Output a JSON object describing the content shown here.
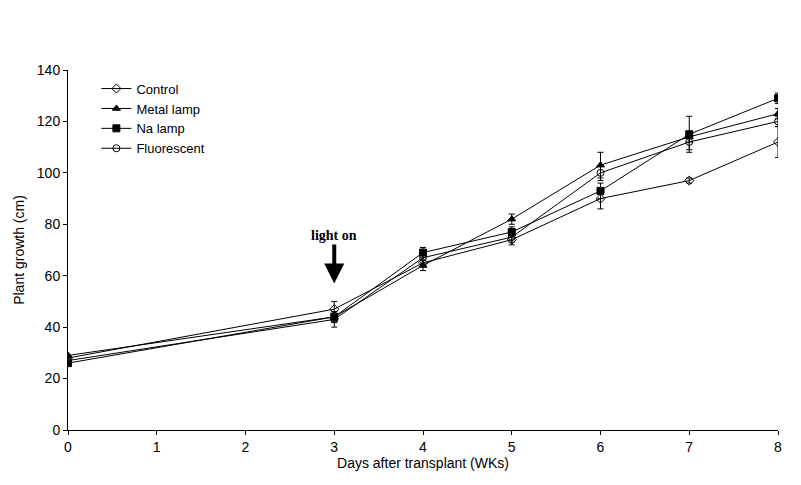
{
  "chart_data": {
    "type": "line",
    "xlabel": "Days after transplant (WKs)",
    "ylabel": "Plant growth (cm)",
    "x": [
      0,
      3,
      4,
      5,
      6,
      7,
      8
    ],
    "series": [
      {
        "name": "Control",
        "color": "#000000",
        "marker": "diamond-open",
        "line_style": "solid",
        "values": [
          28,
          47,
          65,
          74,
          90,
          97,
          112
        ],
        "error": [
          0,
          3,
          1,
          2,
          4,
          1,
          6
        ]
      },
      {
        "name": "Metal lamp",
        "color": "#000000",
        "marker": "triangle-up",
        "line_style": "solid",
        "values": [
          29,
          44,
          64,
          82,
          103,
          114,
          123
        ],
        "error": [
          0,
          2,
          2,
          2,
          5,
          2,
          2
        ]
      },
      {
        "name": "Na lamp",
        "color": "#000000",
        "marker": "square",
        "line_style": "solid",
        "values": [
          26,
          44,
          69,
          77,
          93,
          115,
          129
        ],
        "error": [
          0,
          2,
          2,
          2,
          3,
          7,
          2
        ]
      },
      {
        "name": "Fluorescent",
        "color": "#000000",
        "marker": "circle-open",
        "line_style": "solid",
        "values": [
          27,
          43,
          67,
          75,
          100,
          112,
          120
        ],
        "error": [
          0,
          3,
          2,
          2,
          3,
          3,
          2
        ]
      }
    ],
    "xlim": [
      0,
      8
    ],
    "xticks": [
      0,
      1,
      2,
      3,
      4,
      5,
      6,
      7,
      8
    ],
    "ylim": [
      0,
      140
    ],
    "yticks": [
      0,
      20,
      40,
      60,
      80,
      100,
      120,
      140
    ],
    "grid": false,
    "legend": "upper left",
    "annotations": [
      {
        "text": "light on",
        "x": 3,
        "y": 57
      }
    ]
  }
}
